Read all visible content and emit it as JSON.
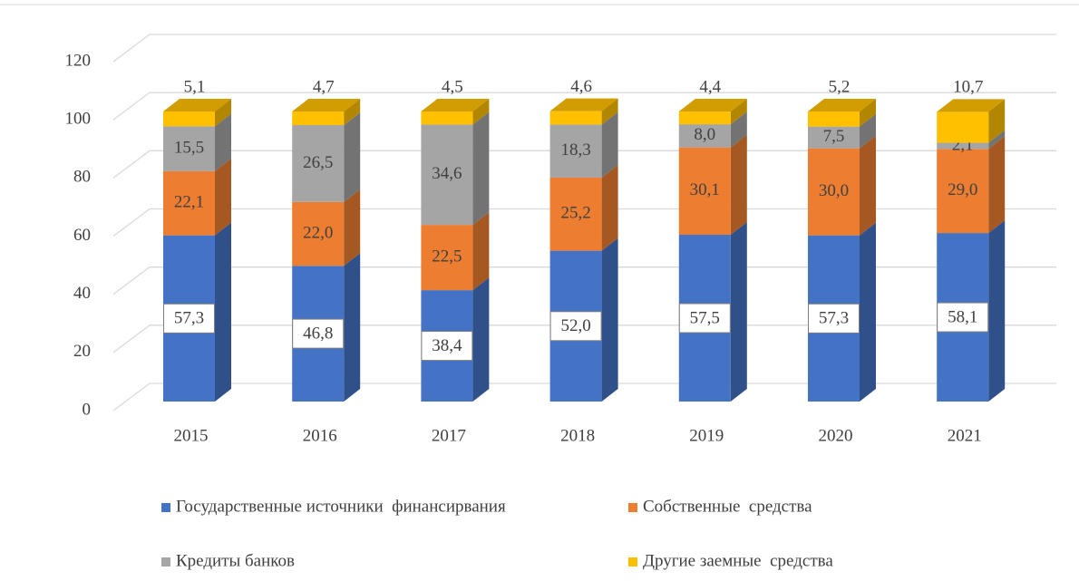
{
  "chart_data": {
    "type": "bar3d_stacked",
    "categories": [
      "2015",
      "2016",
      "2017",
      "2018",
      "2019",
      "2020",
      "2021"
    ],
    "series": [
      {
        "name": "Государственные источники  финансирвания",
        "color": "#4472c4",
        "values": [
          57.3,
          46.8,
          38.4,
          52.0,
          57.5,
          57.3,
          58.1
        ],
        "value_labels": [
          "57,3",
          "46,8",
          "38,4",
          "52,0",
          "57,5",
          "57,3",
          "58,1"
        ]
      },
      {
        "name": "Собственные  средства",
        "color": "#ed7d31",
        "values": [
          22.1,
          22.0,
          22.5,
          25.2,
          30.1,
          30.0,
          29.0
        ],
        "value_labels": [
          "22,1",
          "22,0",
          "22,5",
          "25,2",
          "30,1",
          "30,0",
          "29,0"
        ]
      },
      {
        "name": "Кредиты банков",
        "color": "#a5a5a5",
        "values": [
          15.5,
          26.5,
          34.6,
          18.3,
          8.0,
          7.5,
          2.1
        ],
        "value_labels": [
          "15,5",
          "26,5",
          "34,6",
          "18,3",
          "8,0",
          "7,5",
          "2,1"
        ]
      },
      {
        "name": "Другие заемные  средства",
        "color": "#ffc000",
        "values": [
          5.1,
          4.7,
          4.5,
          4.6,
          4.4,
          5.2,
          10.7
        ],
        "value_labels": [
          "5,1",
          "4,7",
          "4,5",
          "4,6",
          "4,4",
          "5,2",
          "10,7"
        ]
      }
    ],
    "ylim": [
      0,
      120
    ],
    "yticks": [
      0,
      20,
      40,
      60,
      80,
      100,
      120
    ],
    "grid": true
  }
}
